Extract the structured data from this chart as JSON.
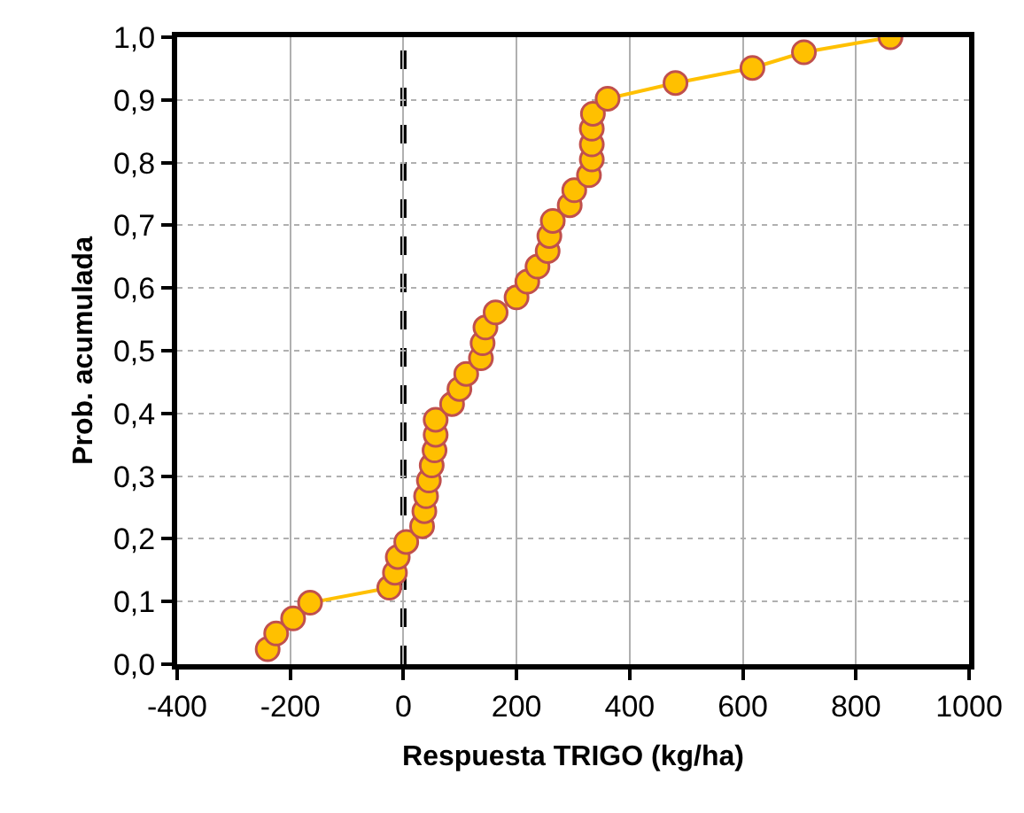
{
  "chart_data": {
    "type": "line",
    "xlabel": "Respuesta TRIGO (kg/ha)",
    "ylabel": "Prob. acumulada",
    "series": [
      {
        "color": "#ffc000",
        "x": [
          -240,
          -225,
          -195,
          -165,
          -25,
          -15,
          -10,
          5,
          33,
          37,
          40,
          45,
          50,
          55,
          57,
          57,
          86,
          99,
          111,
          137,
          140,
          145,
          163,
          200,
          219,
          237,
          255,
          258,
          264,
          294,
          302,
          328,
          333,
          333,
          333,
          335,
          361,
          481,
          617,
          708,
          861
        ],
        "values": [
          0.024,
          0.049,
          0.073,
          0.098,
          0.122,
          0.146,
          0.171,
          0.195,
          0.22,
          0.244,
          0.268,
          0.293,
          0.317,
          0.341,
          0.366,
          0.39,
          0.415,
          0.439,
          0.463,
          0.488,
          0.512,
          0.537,
          0.561,
          0.585,
          0.61,
          0.634,
          0.659,
          0.683,
          0.707,
          0.732,
          0.756,
          0.78,
          0.805,
          0.829,
          0.854,
          0.878,
          0.902,
          0.927,
          0.951,
          0.976,
          1.0
        ]
      }
    ],
    "marker": "circle",
    "line_style": "solid",
    "grid": true,
    "xlim": [
      -400,
      1000
    ],
    "xticks": [
      -400,
      -200,
      0,
      200,
      400,
      600,
      800,
      1000
    ],
    "ylim": [
      0,
      1
    ],
    "yticks": [
      {
        "value": 0,
        "label": "0,0"
      },
      {
        "value": 0.1,
        "label": "0,1"
      },
      {
        "value": 0.2,
        "label": "0,2"
      },
      {
        "value": 0.3,
        "label": "0,3"
      },
      {
        "value": 0.4,
        "label": "0,4"
      },
      {
        "value": 0.5,
        "label": "0,5"
      },
      {
        "value": 0.6,
        "label": "0,6"
      },
      {
        "value": 0.7,
        "label": "0,7"
      },
      {
        "value": 0.8,
        "label": "0,8"
      },
      {
        "value": 0.9,
        "label": "0,9"
      },
      {
        "value": 1,
        "label": "1,0"
      }
    ],
    "ref_lines": [
      {
        "axis": "x",
        "value": 0,
        "color": "#000000",
        "line_style": "dashed"
      }
    ]
  }
}
